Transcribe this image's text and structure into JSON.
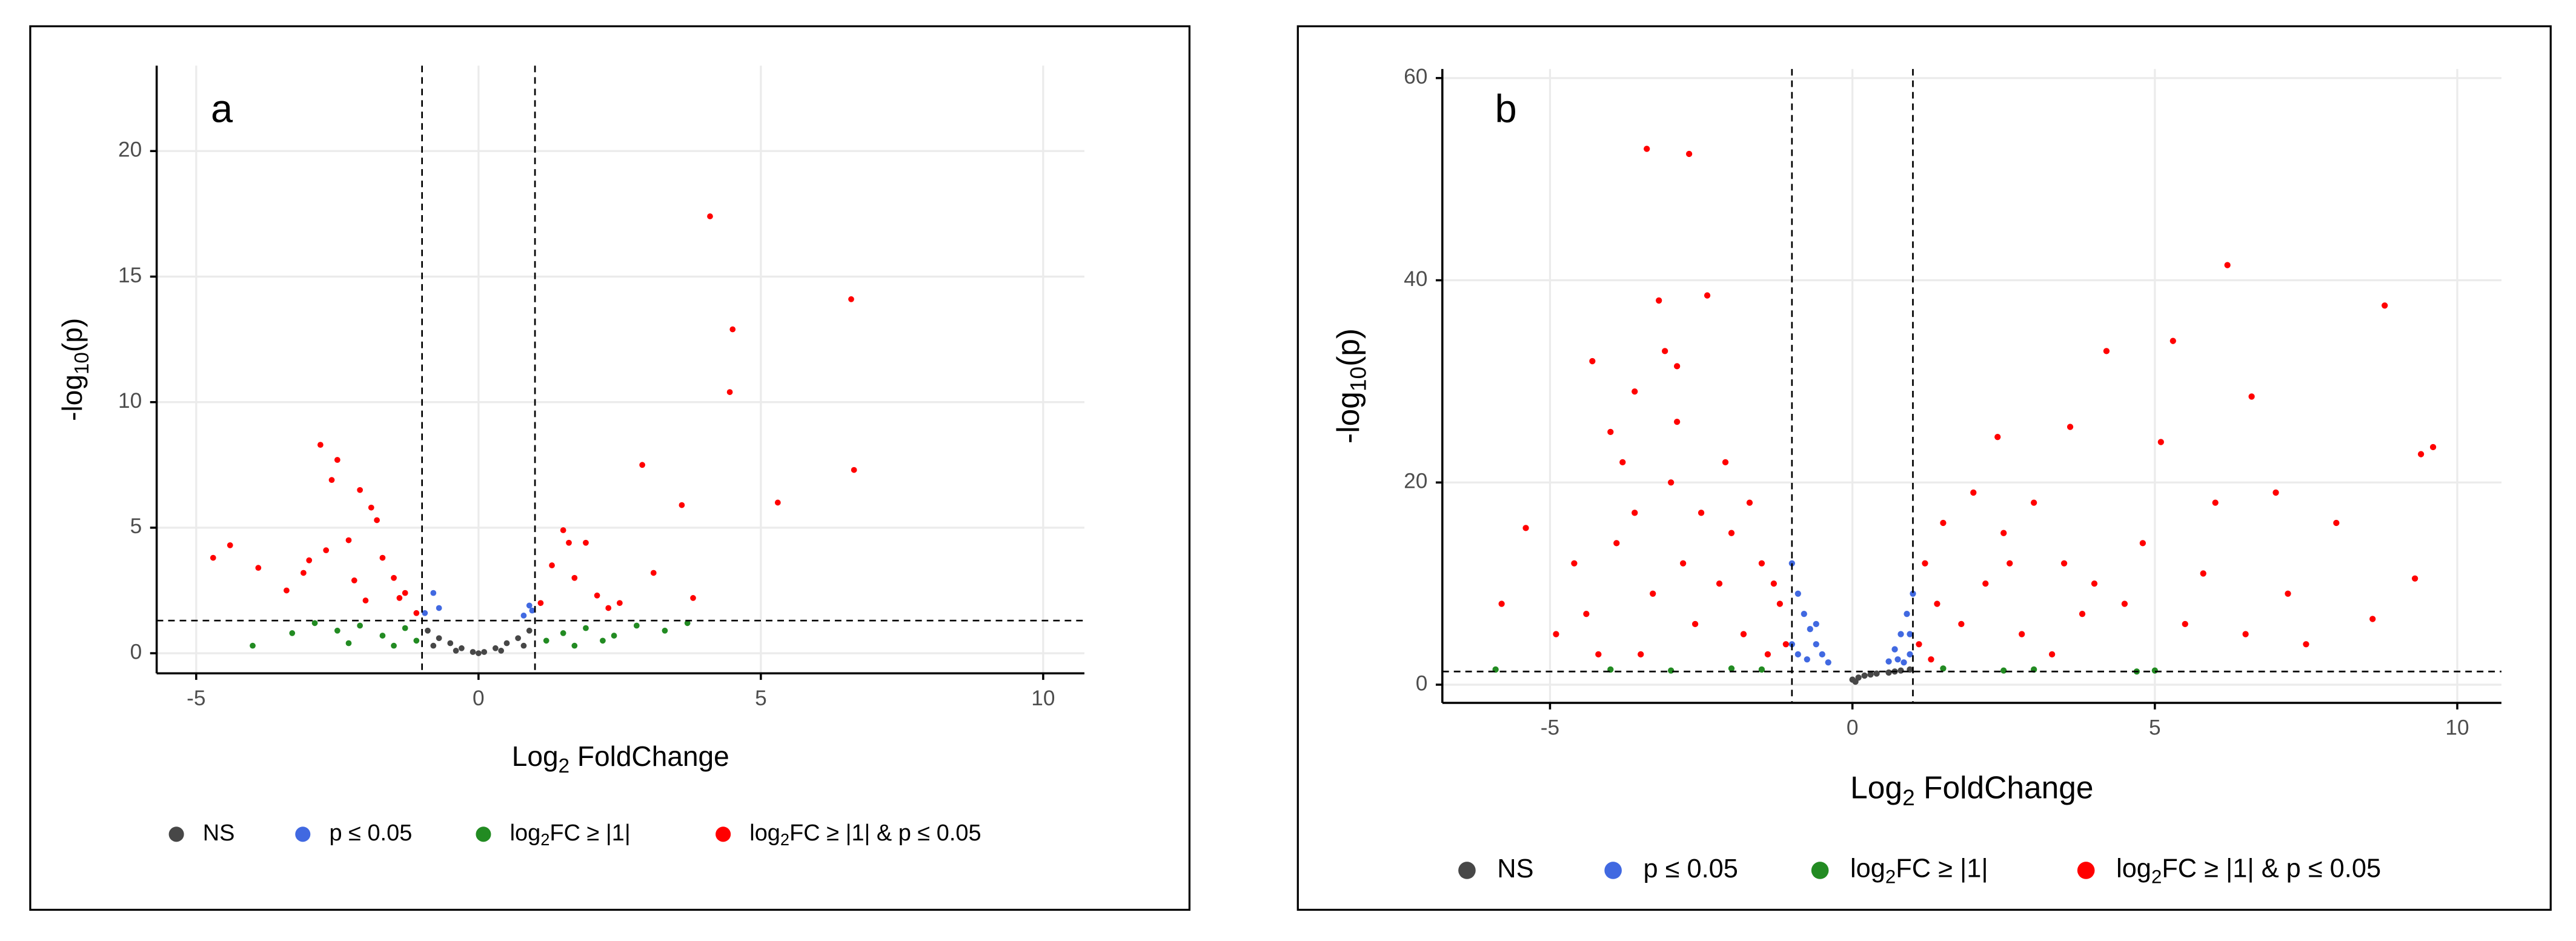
{
  "chart_data": [
    {
      "type": "scatter",
      "panel_label": "a",
      "xlabel": "Log2 FoldChange",
      "ylabel": "-log10(p)",
      "xlim": [
        -5.7,
        10.73
      ],
      "ylim": [
        -0.8,
        23.4
      ],
      "xticks": [
        -5,
        0,
        5,
        10
      ],
      "yticks": [
        0,
        5,
        10,
        15,
        20
      ],
      "grid": true,
      "vlines": [
        -1,
        1
      ],
      "hline": 1.3,
      "legend": "bottom",
      "series": [
        {
          "name": "NS",
          "color": "#474747",
          "x": [
            -0.9,
            -0.7,
            -0.5,
            -0.3,
            -0.1,
            0,
            0.1,
            0.3,
            0.5,
            0.7,
            0.9,
            -0.8,
            0.8,
            -0.4,
            0.4
          ],
          "y": [
            0.9,
            0.6,
            0.4,
            0.2,
            0.05,
            0,
            0.05,
            0.2,
            0.4,
            0.6,
            0.9,
            0.3,
            0.3,
            0.1,
            0.1
          ]
        },
        {
          "name": "p ≤ 0.05",
          "color": "#4169e1",
          "x": [
            -0.95,
            -0.8,
            -0.7,
            0.8,
            0.9,
            0.95
          ],
          "y": [
            1.6,
            2.4,
            1.8,
            1.5,
            1.9,
            1.7
          ]
        },
        {
          "name": "log2FC ≥ |1|",
          "color": "#228b22",
          "x": [
            -4,
            -3.3,
            -2.9,
            -2.5,
            -2.1,
            -1.7,
            -1.3,
            -1.1,
            1.2,
            1.5,
            1.9,
            2.4,
            2.8,
            3.3,
            3.7,
            -2.3,
            -1.5,
            1.7,
            2.2
          ],
          "y": [
            0.3,
            0.8,
            1.2,
            0.9,
            1.1,
            0.7,
            1.0,
            0.5,
            0.5,
            0.8,
            1.0,
            0.7,
            1.1,
            0.9,
            1.2,
            0.4,
            0.3,
            0.3,
            0.5
          ]
        },
        {
          "name": "log2FC ≥ |1| & p ≤ 0.05",
          "color": "#ff0000",
          "x": [
            -4.7,
            -4.4,
            -3.9,
            -3.4,
            -3.1,
            -2.8,
            -2.7,
            -2.5,
            -2.3,
            -2.1,
            -1.9,
            -1.7,
            -1.5,
            -1.3,
            -1.1,
            -2.6,
            -2.2,
            -1.8,
            -1.4,
            1.1,
            1.3,
            1.5,
            1.7,
            1.9,
            2.1,
            2.5,
            2.9,
            3.1,
            3.6,
            3.8,
            4.1,
            4.5,
            4.45,
            5.3,
            6.6,
            6.65,
            -2.0,
            1.6,
            2.3,
            -3.0
          ],
          "y": [
            3.8,
            4.3,
            3.4,
            2.5,
            3.2,
            8.3,
            4.1,
            7.7,
            4.5,
            6.5,
            5.8,
            3.8,
            3.0,
            2.4,
            1.6,
            6.9,
            2.9,
            5.3,
            2.2,
            2.0,
            3.5,
            4.9,
            3.0,
            4.4,
            2.3,
            2.0,
            7.5,
            3.2,
            5.9,
            2.2,
            17.4,
            12.9,
            10.4,
            6.0,
            14.1,
            7.3,
            2.1,
            4.4,
            1.8,
            3.7
          ]
        }
      ]
    },
    {
      "type": "scatter",
      "panel_label": "b",
      "xlabel": "Log2 FoldChange",
      "ylabel": "-log10(p)",
      "xlim": [
        -6.78,
        10.73
      ],
      "ylim": [
        -1.8,
        60.9
      ],
      "xticks": [
        -5,
        0,
        5,
        10
      ],
      "yticks": [
        0,
        20,
        40,
        60
      ],
      "grid": true,
      "vlines": [
        -1,
        1
      ],
      "hline": 1.3,
      "legend": "bottom",
      "series": [
        {
          "name": "NS",
          "color": "#474747",
          "x": [
            0,
            0.1,
            0.2,
            0.4,
            0.6,
            0.8,
            0.95,
            0.05,
            0.3,
            0.7
          ],
          "y": [
            0.5,
            0.7,
            0.9,
            1.1,
            1.2,
            1.4,
            1.5,
            0.3,
            1.0,
            1.3
          ]
        },
        {
          "name": "p ≤ 0.05",
          "color": "#4169e1",
          "x": [
            -1.0,
            -0.9,
            -0.8,
            -0.7,
            -0.6,
            -0.5,
            -0.4,
            -0.9,
            -0.75,
            -0.6,
            0.6,
            0.7,
            0.8,
            0.9,
            1.0,
            0.75,
            0.85,
            0.95,
            -1.0,
            0.95
          ],
          "y": [
            12,
            9,
            7,
            5.5,
            4,
            3,
            2.2,
            3,
            2.5,
            6,
            2.3,
            3.5,
            5,
            7,
            9,
            2.5,
            2.2,
            5,
            4,
            3
          ]
        },
        {
          "name": "log2FC ≥ |1|",
          "color": "#228b22",
          "x": [
            -5.9,
            -3,
            -2,
            -1.5,
            1.5,
            2.5,
            3,
            4.7,
            5.0,
            -4
          ],
          "y": [
            1.5,
            1.4,
            1.6,
            1.5,
            1.6,
            1.4,
            1.5,
            1.3,
            1.4,
            1.5
          ]
        },
        {
          "name": "log2FC ≥ |1| & p ≤ 0.05",
          "color": "#ff0000",
          "x": [
            -3.4,
            -2.7,
            -3.2,
            -2.4,
            -3.1,
            -4.3,
            -2.9,
            -3.6,
            -5.4,
            -5.8,
            -4.9,
            -4.0,
            -3.8,
            -3.0,
            -2.5,
            -2.0,
            -1.5,
            -1.2,
            -1.1,
            -2.2,
            -2.8,
            -3.3,
            -4.4,
            -3.9,
            -2.6,
            -1.8,
            -1.4,
            -3.5,
            -4.6,
            -1.3,
            -2.1,
            -1.7,
            -2.9,
            -3.6,
            -4.2,
            6.2,
            8.8,
            5.3,
            4.2,
            6.6,
            9.6,
            9.4,
            3.6,
            2.4,
            5.1,
            7.0,
            8.0,
            9.3,
            8.6,
            1.2,
            1.5,
            2.0,
            2.5,
            3.0,
            3.5,
            4.0,
            4.5,
            5.5,
            6.5,
            7.5,
            1.1,
            1.4,
            1.8,
            2.2,
            2.8,
            3.3,
            3.8,
            4.8,
            5.8,
            7.2,
            1.3,
            2.6,
            6.0
          ],
          "y": [
            53,
            52.5,
            38,
            38.5,
            33,
            32,
            31.5,
            29,
            15.5,
            8,
            5,
            25,
            22,
            20,
            17,
            15,
            12,
            8,
            4,
            10,
            12,
            9,
            7,
            14,
            6,
            5,
            3,
            3,
            12,
            10,
            22,
            18,
            26,
            17,
            3,
            41.5,
            37.5,
            34,
            33,
            28.5,
            23.5,
            22.8,
            25.5,
            24.5,
            24,
            19,
            16,
            10.5,
            6.5,
            12,
            16,
            19,
            15,
            18,
            12,
            10,
            8,
            6,
            5,
            4,
            4,
            8,
            6,
            10,
            5,
            3,
            7,
            14,
            11,
            9,
            2.5,
            12,
            18
          ]
        }
      ]
    }
  ]
}
